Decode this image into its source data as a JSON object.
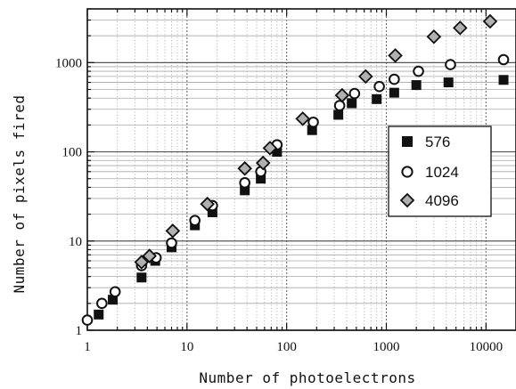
{
  "chart_data": {
    "type": "scatter",
    "title": "",
    "xlabel": "Number of photoelectrons",
    "ylabel": "Number of pixels fired",
    "xscale": "log",
    "yscale": "log",
    "xlim": [
      1,
      20000
    ],
    "ylim": [
      1,
      4000
    ],
    "x_tick_labels": [
      "1",
      "10",
      "100",
      "1000",
      "10000"
    ],
    "y_tick_labels": [
      "1",
      "10",
      "100",
      "1000"
    ],
    "x_ticks": [
      1,
      10,
      100,
      1000,
      10000
    ],
    "y_ticks": [
      1,
      10,
      100,
      1000
    ],
    "grid": true,
    "legend_position": "center-right",
    "series": [
      {
        "name": "576",
        "marker": "square-filled",
        "color": "#111111",
        "points": [
          [
            1.3,
            1.5
          ],
          [
            1.8,
            2.2
          ],
          [
            3.5,
            3.9
          ],
          [
            4.8,
            6.0
          ],
          [
            7.0,
            8.5
          ],
          [
            12,
            15
          ],
          [
            18,
            21
          ],
          [
            38,
            37
          ],
          [
            55,
            50
          ],
          [
            80,
            100
          ],
          [
            180,
            175
          ],
          [
            330,
            260
          ],
          [
            450,
            350
          ],
          [
            800,
            390
          ],
          [
            1200,
            460
          ],
          [
            2000,
            560
          ],
          [
            4200,
            600
          ],
          [
            15000,
            640
          ]
        ]
      },
      {
        "name": "1024",
        "marker": "circle-open",
        "color": "#111111",
        "points": [
          [
            1.0,
            1.3
          ],
          [
            1.4,
            2.0
          ],
          [
            1.9,
            2.7
          ],
          [
            3.5,
            5.3
          ],
          [
            4.9,
            6.5
          ],
          [
            7.0,
            9.5
          ],
          [
            12,
            17
          ],
          [
            18,
            25
          ],
          [
            38,
            45
          ],
          [
            55,
            60
          ],
          [
            80,
            120
          ],
          [
            185,
            215
          ],
          [
            340,
            330
          ],
          [
            480,
            450
          ],
          [
            850,
            540
          ],
          [
            1200,
            650
          ],
          [
            2100,
            800
          ],
          [
            4400,
            950
          ],
          [
            15000,
            1080
          ]
        ]
      },
      {
        "name": "4096",
        "marker": "diamond-open",
        "color": "#111111",
        "points": [
          [
            3.5,
            5.8
          ],
          [
            4.2,
            6.8
          ],
          [
            7.2,
            13
          ],
          [
            16,
            26
          ],
          [
            38,
            65
          ],
          [
            58,
            75
          ],
          [
            68,
            110
          ],
          [
            145,
            235
          ],
          [
            360,
            430
          ],
          [
            620,
            700
          ],
          [
            1230,
            1200
          ],
          [
            3000,
            1950
          ],
          [
            5500,
            2450
          ],
          [
            11000,
            2900
          ]
        ]
      }
    ]
  }
}
